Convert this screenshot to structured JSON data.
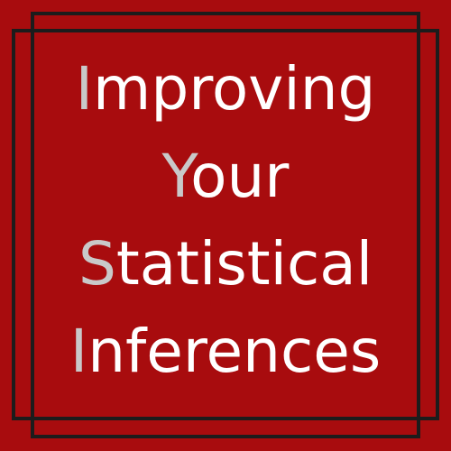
{
  "title": {
    "lines": [
      {
        "initial": "I",
        "rest": "mproving"
      },
      {
        "initial": "Y",
        "rest": "our"
      },
      {
        "initial": "S",
        "rest": "tatistical"
      },
      {
        "initial": "I",
        "rest": "nferences"
      }
    ]
  },
  "colors": {
    "background": "#a80c0e",
    "frame": "#1c1c1c",
    "text": "#ffffff",
    "initial": "#c9c9c9"
  }
}
